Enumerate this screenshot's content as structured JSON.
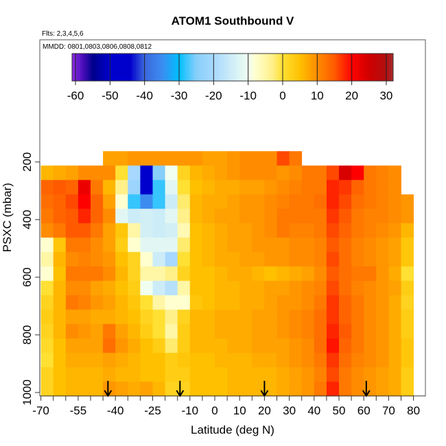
{
  "chart_data": {
    "type": "heatmap",
    "title": "ATOM1 Southbound V",
    "subtitle": "Flts: 2,3,4,5,6",
    "annotation": "MMDD: 0801,0803,0806,0808,0812",
    "xlabel": "Latitude (deg N)",
    "ylabel": "PSXC (mbar)",
    "xlim": [
      -70,
      85
    ],
    "ylim": [
      1012,
      -224
    ],
    "y_reversed": true,
    "x_ticks": [
      -70,
      -55,
      -40,
      -25,
      -10,
      0,
      10,
      20,
      30,
      40,
      50,
      60,
      70,
      80
    ],
    "x_minor_step": 5,
    "y_ticks": [
      200,
      400,
      600,
      800,
      1000
    ],
    "colorbar": {
      "range": [
        -61,
        32
      ],
      "ticks": [
        -60,
        -50,
        -40,
        -30,
        -20,
        -10,
        0,
        10,
        20,
        30
      ],
      "placement": "top-inset",
      "stops": [
        [
          -61,
          "#8a2be2"
        ],
        [
          -58,
          "#4b0dbb"
        ],
        [
          -55,
          "#00008b"
        ],
        [
          -50,
          "#0000cd"
        ],
        [
          -44,
          "#0000cd"
        ],
        [
          -40,
          "#3a66dc"
        ],
        [
          -35,
          "#3c8cf0"
        ],
        [
          -30,
          "#00bfff"
        ],
        [
          -25,
          "#87cefa"
        ],
        [
          -20,
          "#a8d8ff"
        ],
        [
          -10,
          "#f0fff0"
        ],
        [
          -8,
          "#ffffd0"
        ],
        [
          -3,
          "#fff08a"
        ],
        [
          0,
          "#ffe033"
        ],
        [
          5,
          "#ffc000"
        ],
        [
          10,
          "#ff8c00"
        ],
        [
          15,
          "#ff5a00"
        ],
        [
          20,
          "#ff0000"
        ],
        [
          25,
          "#d00000"
        ],
        [
          30,
          "#b01010"
        ],
        [
          32,
          "#a52a2a"
        ]
      ]
    },
    "arrow_latitudes": [
      -43,
      -14,
      20,
      61
    ],
    "lat_bin_width": 5,
    "pressure_bin_width": 50,
    "latitudes": [
      -67.5,
      -62.5,
      -57.5,
      -52.5,
      -47.5,
      -42.5,
      -37.5,
      -32.5,
      -27.5,
      -22.5,
      -17.5,
      -12.5,
      -7.5,
      -2.5,
      2.5,
      7.5,
      12.5,
      17.5,
      22.5,
      27.5,
      32.5,
      37.5,
      42.5,
      47.5,
      52.5,
      57.5,
      62.5,
      67.5,
      72.5,
      77.5
    ],
    "pressures": [
      187.5,
      237.5,
      287.5,
      337.5,
      387.5,
      437.5,
      487.5,
      537.5,
      587.5,
      637.5,
      687.5,
      737.5,
      787.5,
      837.5,
      887.5,
      937.5,
      987.5
    ],
    "values": [
      [
        null,
        null,
        null,
        null,
        null,
        8,
        8,
        9,
        9,
        9,
        9,
        9,
        9,
        8,
        8,
        9,
        10,
        10,
        10,
        16,
        12,
        null,
        null,
        null,
        null,
        null,
        null,
        null,
        null,
        null
      ],
      [
        6,
        7,
        8,
        10,
        10,
        10,
        0,
        -20,
        -45,
        -25,
        -10,
        2,
        6,
        7,
        8,
        9,
        10,
        10,
        10,
        9,
        10,
        12,
        12,
        16,
        24,
        20,
        12,
        11,
        10,
        null
      ],
      [
        14,
        15,
        14,
        22,
        12,
        6,
        -3,
        -22,
        -48,
        -28,
        -12,
        0,
        5,
        6,
        7,
        7,
        8,
        8,
        9,
        10,
        11,
        12,
        12,
        18,
        17,
        14,
        12,
        11,
        10,
        null
      ],
      [
        13,
        14,
        16,
        20,
        14,
        8,
        -8,
        -28,
        -35,
        -28,
        -15,
        -2,
        6,
        7,
        7,
        8,
        9,
        9,
        10,
        11,
        12,
        12,
        13,
        18,
        16,
        13,
        12,
        11,
        10,
        9
      ],
      [
        12,
        14,
        15,
        18,
        14,
        10,
        -12,
        -15,
        -14,
        -15,
        -12,
        -3,
        6,
        7,
        8,
        8,
        9,
        9,
        10,
        12,
        12,
        12,
        12,
        17,
        15,
        12,
        11,
        11,
        10,
        9
      ],
      [
        10,
        12,
        15,
        15,
        12,
        8,
        4,
        -5,
        -14,
        -15,
        -14,
        -6,
        5,
        6,
        7,
        8,
        8,
        9,
        10,
        12,
        11,
        11,
        12,
        16,
        14,
        12,
        11,
        10,
        9,
        6
      ],
      [
        -8,
        4,
        12,
        12,
        10,
        8,
        3,
        -8,
        -12,
        -12,
        -12,
        -2,
        5,
        6,
        7,
        8,
        8,
        9,
        9,
        9,
        10,
        10,
        11,
        15,
        13,
        11,
        10,
        9,
        8,
        4
      ],
      [
        -5,
        6,
        10,
        11,
        10,
        9,
        5,
        2,
        -8,
        -15,
        -20,
        0,
        5,
        6,
        7,
        7,
        8,
        8,
        9,
        9,
        10,
        10,
        11,
        16,
        13,
        11,
        10,
        9,
        8,
        4
      ],
      [
        -8,
        5,
        12,
        12,
        12,
        10,
        6,
        2,
        -5,
        -5,
        -3,
        2,
        5,
        5,
        6,
        7,
        7,
        6,
        5,
        6,
        7,
        8,
        10,
        15,
        13,
        12,
        12,
        9,
        7,
        0
      ],
      [
        0,
        6,
        10,
        10,
        8,
        7,
        5,
        3,
        -10,
        -15,
        -18,
        -5,
        5,
        5,
        6,
        6,
        7,
        7,
        8,
        8,
        9,
        10,
        11,
        16,
        13,
        11,
        10,
        9,
        8,
        3
      ],
      [
        2,
        6,
        12,
        11,
        9,
        8,
        6,
        4,
        0,
        -5,
        -8,
        -8,
        4,
        5,
        6,
        6,
        7,
        7,
        8,
        9,
        9,
        10,
        12,
        17,
        14,
        12,
        10,
        9,
        7,
        2
      ],
      [
        3,
        6,
        8,
        8,
        7,
        7,
        6,
        5,
        2,
        0,
        -3,
        2,
        6,
        6,
        7,
        7,
        7,
        8,
        8,
        9,
        10,
        11,
        13,
        17,
        14,
        12,
        10,
        9,
        7,
        3
      ],
      [
        2,
        6,
        10,
        9,
        8,
        12,
        8,
        6,
        3,
        0,
        -5,
        3,
        6,
        6,
        7,
        7,
        7,
        8,
        8,
        9,
        10,
        11,
        13,
        18,
        15,
        12,
        10,
        9,
        7,
        3
      ],
      [
        1,
        5,
        8,
        8,
        8,
        13,
        9,
        7,
        5,
        3,
        -2,
        3,
        6,
        6,
        6,
        7,
        7,
        8,
        8,
        8,
        9,
        10,
        13,
        19,
        14,
        12,
        10,
        9,
        7,
        4
      ],
      [
        0,
        5,
        7,
        7,
        7,
        8,
        7,
        6,
        5,
        5,
        3,
        4,
        5,
        5,
        6,
        6,
        6,
        7,
        7,
        8,
        9,
        10,
        12,
        17,
        13,
        11,
        10,
        9,
        7,
        4
      ],
      [
        2,
        5,
        6,
        6,
        6,
        7,
        6,
        6,
        5,
        5,
        3,
        3,
        5,
        5,
        5,
        6,
        6,
        6,
        6,
        7,
        8,
        9,
        11,
        16,
        12,
        10,
        9,
        8,
        7,
        3
      ],
      [
        2,
        5,
        6,
        6,
        6,
        9,
        8,
        7,
        8,
        6,
        2,
        2,
        5,
        5,
        5,
        6,
        6,
        6,
        6,
        7,
        8,
        9,
        12,
        18,
        12,
        10,
        9,
        8,
        7,
        3
      ]
    ]
  }
}
